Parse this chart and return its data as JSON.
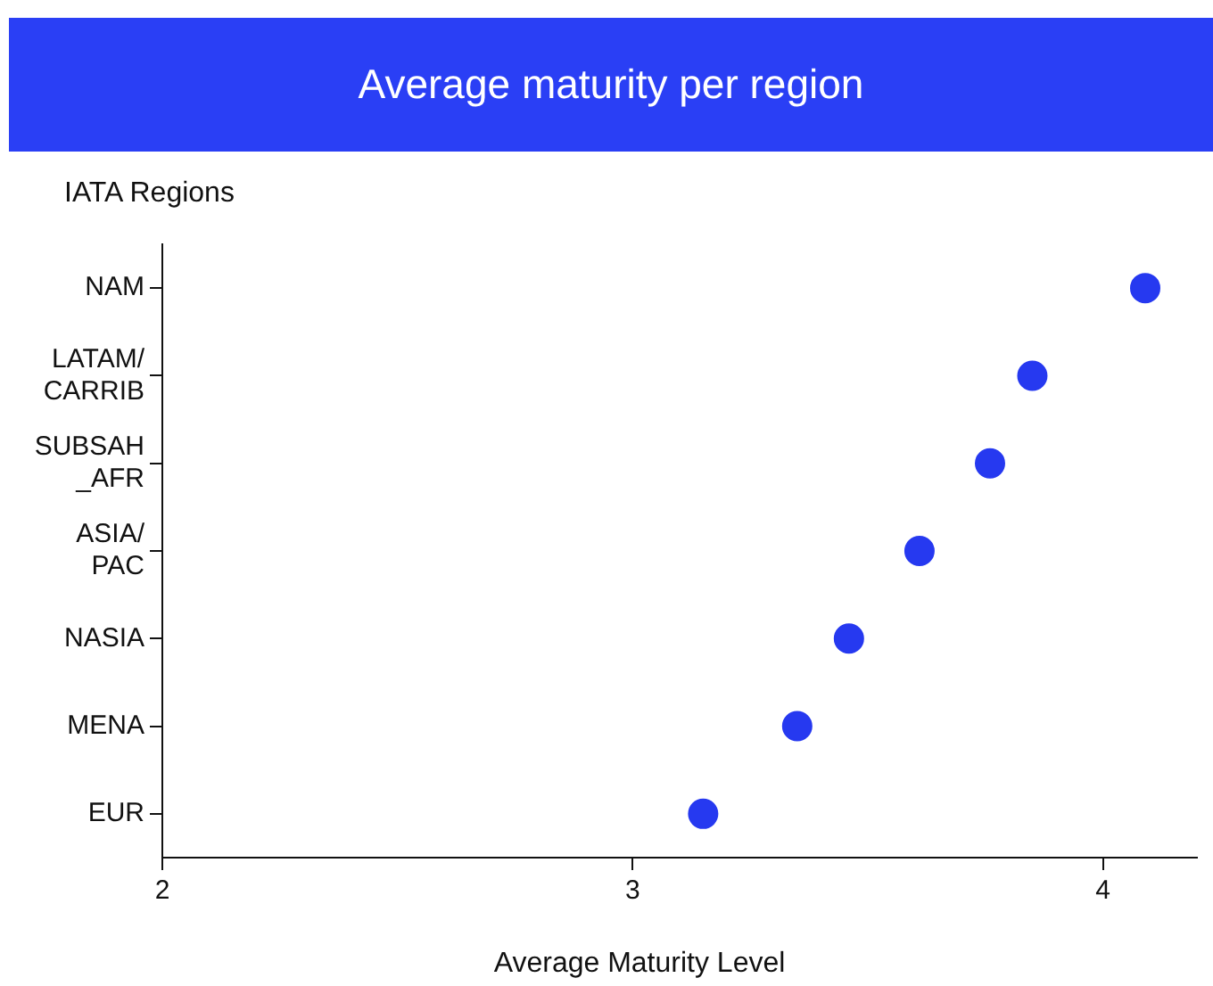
{
  "chart_data": {
    "type": "scatter",
    "orientation": "horizontal",
    "title": "Average maturity per region",
    "xlabel": "Average Maturity Level",
    "ylabel": "IATA Regions",
    "categories": [
      "NAM",
      "LATAM/\nCARRIB",
      "SUBSAH\n_AFR",
      "ASIA/\nPAC",
      "NASIA",
      "MENA",
      "EUR"
    ],
    "values": [
      4.09,
      3.85,
      3.76,
      3.61,
      3.46,
      3.35,
      3.15
    ],
    "color": "#2639f0",
    "marker": "circle",
    "xlim": [
      2,
      4.2
    ],
    "xticks": [
      2,
      3,
      4
    ],
    "grid": false,
    "legend": false
  }
}
